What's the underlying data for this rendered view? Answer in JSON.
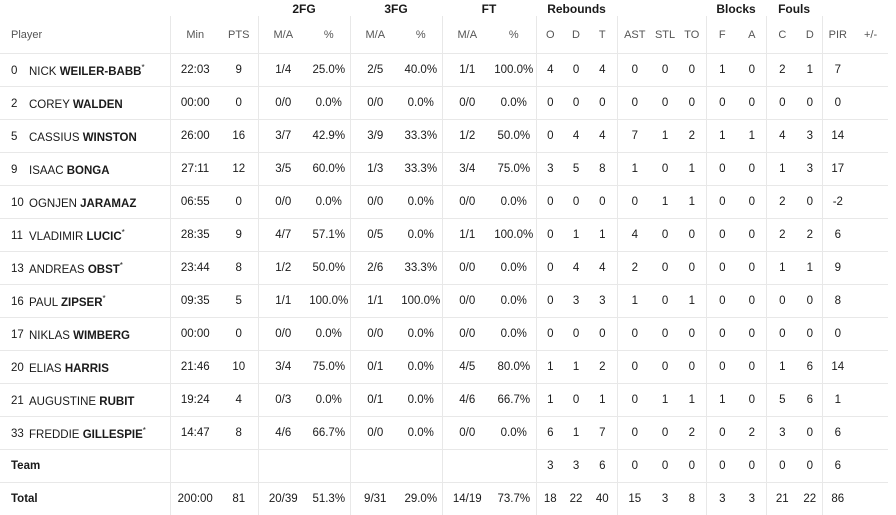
{
  "groups": {
    "fg2": "2FG",
    "fg3": "3FG",
    "ft": "FT",
    "rebounds": "Rebounds",
    "blocks": "Blocks",
    "fouls": "Fouls"
  },
  "columns": {
    "player": "Player",
    "min": "Min",
    "pts": "PTS",
    "fg2_ma": "M/A",
    "fg2_pct": "%",
    "fg3_ma": "M/A",
    "fg3_pct": "%",
    "ft_ma": "M/A",
    "ft_pct": "%",
    "reb_o": "O",
    "reb_d": "D",
    "reb_t": "T",
    "ast": "AST",
    "stl": "STL",
    "to": "TO",
    "blk_f": "F",
    "blk_a": "A",
    "foul_c": "C",
    "foul_d": "D",
    "pir": "PIR",
    "pm": "+/-"
  },
  "players": [
    {
      "num": "0",
      "first": "NICK",
      "last": "WEILER-BABB",
      "starter": "*",
      "min": "22:03",
      "pts": "9",
      "fg2_ma": "1/4",
      "fg2_pct": "25.0%",
      "fg3_ma": "2/5",
      "fg3_pct": "40.0%",
      "ft_ma": "1/1",
      "ft_pct": "100.0%",
      "reb_o": "4",
      "reb_d": "0",
      "reb_t": "4",
      "ast": "0",
      "stl": "0",
      "to": "0",
      "blk_f": "1",
      "blk_a": "0",
      "foul_c": "2",
      "foul_d": "1",
      "pir": "7",
      "pm": ""
    },
    {
      "num": "2",
      "first": "COREY",
      "last": "WALDEN",
      "starter": "",
      "min": "00:00",
      "pts": "0",
      "fg2_ma": "0/0",
      "fg2_pct": "0.0%",
      "fg3_ma": "0/0",
      "fg3_pct": "0.0%",
      "ft_ma": "0/0",
      "ft_pct": "0.0%",
      "reb_o": "0",
      "reb_d": "0",
      "reb_t": "0",
      "ast": "0",
      "stl": "0",
      "to": "0",
      "blk_f": "0",
      "blk_a": "0",
      "foul_c": "0",
      "foul_d": "0",
      "pir": "0",
      "pm": ""
    },
    {
      "num": "5",
      "first": "CASSIUS",
      "last": "WINSTON",
      "starter": "",
      "min": "26:00",
      "pts": "16",
      "fg2_ma": "3/7",
      "fg2_pct": "42.9%",
      "fg3_ma": "3/9",
      "fg3_pct": "33.3%",
      "ft_ma": "1/2",
      "ft_pct": "50.0%",
      "reb_o": "0",
      "reb_d": "4",
      "reb_t": "4",
      "ast": "7",
      "stl": "1",
      "to": "2",
      "blk_f": "1",
      "blk_a": "1",
      "foul_c": "4",
      "foul_d": "3",
      "pir": "14",
      "pm": ""
    },
    {
      "num": "9",
      "first": "ISAAC",
      "last": "BONGA",
      "starter": "",
      "min": "27:11",
      "pts": "12",
      "fg2_ma": "3/5",
      "fg2_pct": "60.0%",
      "fg3_ma": "1/3",
      "fg3_pct": "33.3%",
      "ft_ma": "3/4",
      "ft_pct": "75.0%",
      "reb_o": "3",
      "reb_d": "5",
      "reb_t": "8",
      "ast": "1",
      "stl": "0",
      "to": "1",
      "blk_f": "0",
      "blk_a": "0",
      "foul_c": "1",
      "foul_d": "3",
      "pir": "17",
      "pm": ""
    },
    {
      "num": "10",
      "first": "OGNJEN",
      "last": "JARAMAZ",
      "starter": "",
      "min": "06:55",
      "pts": "0",
      "fg2_ma": "0/0",
      "fg2_pct": "0.0%",
      "fg3_ma": "0/0",
      "fg3_pct": "0.0%",
      "ft_ma": "0/0",
      "ft_pct": "0.0%",
      "reb_o": "0",
      "reb_d": "0",
      "reb_t": "0",
      "ast": "0",
      "stl": "1",
      "to": "1",
      "blk_f": "0",
      "blk_a": "0",
      "foul_c": "2",
      "foul_d": "0",
      "pir": "-2",
      "pm": ""
    },
    {
      "num": "11",
      "first": "VLADIMIR",
      "last": "LUCIC",
      "starter": "*",
      "min": "28:35",
      "pts": "9",
      "fg2_ma": "4/7",
      "fg2_pct": "57.1%",
      "fg3_ma": "0/5",
      "fg3_pct": "0.0%",
      "ft_ma": "1/1",
      "ft_pct": "100.0%",
      "reb_o": "0",
      "reb_d": "1",
      "reb_t": "1",
      "ast": "4",
      "stl": "0",
      "to": "0",
      "blk_f": "0",
      "blk_a": "0",
      "foul_c": "2",
      "foul_d": "2",
      "pir": "6",
      "pm": ""
    },
    {
      "num": "13",
      "first": "ANDREAS",
      "last": "OBST",
      "starter": "*",
      "min": "23:44",
      "pts": "8",
      "fg2_ma": "1/2",
      "fg2_pct": "50.0%",
      "fg3_ma": "2/6",
      "fg3_pct": "33.3%",
      "ft_ma": "0/0",
      "ft_pct": "0.0%",
      "reb_o": "0",
      "reb_d": "4",
      "reb_t": "4",
      "ast": "2",
      "stl": "0",
      "to": "0",
      "blk_f": "0",
      "blk_a": "0",
      "foul_c": "1",
      "foul_d": "1",
      "pir": "9",
      "pm": ""
    },
    {
      "num": "16",
      "first": "PAUL",
      "last": "ZIPSER",
      "starter": "*",
      "min": "09:35",
      "pts": "5",
      "fg2_ma": "1/1",
      "fg2_pct": "100.0%",
      "fg3_ma": "1/1",
      "fg3_pct": "100.0%",
      "ft_ma": "0/0",
      "ft_pct": "0.0%",
      "reb_o": "0",
      "reb_d": "3",
      "reb_t": "3",
      "ast": "1",
      "stl": "0",
      "to": "1",
      "blk_f": "0",
      "blk_a": "0",
      "foul_c": "0",
      "foul_d": "0",
      "pir": "8",
      "pm": ""
    },
    {
      "num": "17",
      "first": "NIKLAS",
      "last": "WIMBERG",
      "starter": "",
      "min": "00:00",
      "pts": "0",
      "fg2_ma": "0/0",
      "fg2_pct": "0.0%",
      "fg3_ma": "0/0",
      "fg3_pct": "0.0%",
      "ft_ma": "0/0",
      "ft_pct": "0.0%",
      "reb_o": "0",
      "reb_d": "0",
      "reb_t": "0",
      "ast": "0",
      "stl": "0",
      "to": "0",
      "blk_f": "0",
      "blk_a": "0",
      "foul_c": "0",
      "foul_d": "0",
      "pir": "0",
      "pm": ""
    },
    {
      "num": "20",
      "first": "ELIAS",
      "last": "HARRIS",
      "starter": "",
      "min": "21:46",
      "pts": "10",
      "fg2_ma": "3/4",
      "fg2_pct": "75.0%",
      "fg3_ma": "0/1",
      "fg3_pct": "0.0%",
      "ft_ma": "4/5",
      "ft_pct": "80.0%",
      "reb_o": "1",
      "reb_d": "1",
      "reb_t": "2",
      "ast": "0",
      "stl": "0",
      "to": "0",
      "blk_f": "0",
      "blk_a": "0",
      "foul_c": "1",
      "foul_d": "6",
      "pir": "14",
      "pm": ""
    },
    {
      "num": "21",
      "first": "AUGUSTINE",
      "last": "RUBIT",
      "starter": "",
      "min": "19:24",
      "pts": "4",
      "fg2_ma": "0/3",
      "fg2_pct": "0.0%",
      "fg3_ma": "0/1",
      "fg3_pct": "0.0%",
      "ft_ma": "4/6",
      "ft_pct": "66.7%",
      "reb_o": "1",
      "reb_d": "0",
      "reb_t": "1",
      "ast": "0",
      "stl": "1",
      "to": "1",
      "blk_f": "1",
      "blk_a": "0",
      "foul_c": "5",
      "foul_d": "6",
      "pir": "1",
      "pm": ""
    },
    {
      "num": "33",
      "first": "FREDDIE",
      "last": "GILLESPIE",
      "starter": "*",
      "min": "14:47",
      "pts": "8",
      "fg2_ma": "4/6",
      "fg2_pct": "66.7%",
      "fg3_ma": "0/0",
      "fg3_pct": "0.0%",
      "ft_ma": "0/0",
      "ft_pct": "0.0%",
      "reb_o": "6",
      "reb_d": "1",
      "reb_t": "7",
      "ast": "0",
      "stl": "0",
      "to": "2",
      "blk_f": "0",
      "blk_a": "2",
      "foul_c": "3",
      "foul_d": "0",
      "pir": "6",
      "pm": ""
    }
  ],
  "team": {
    "label": "Team",
    "reb_o": "3",
    "reb_d": "3",
    "reb_t": "6",
    "ast": "0",
    "stl": "0",
    "to": "0",
    "blk_f": "0",
    "blk_a": "0",
    "foul_c": "0",
    "foul_d": "0",
    "pir": "6",
    "pm": ""
  },
  "total": {
    "label": "Total",
    "min": "200:00",
    "pts": "81",
    "fg2_ma": "20/39",
    "fg2_pct": "51.3%",
    "fg3_ma": "9/31",
    "fg3_pct": "29.0%",
    "ft_ma": "14/19",
    "ft_pct": "73.7%",
    "reb_o": "18",
    "reb_d": "22",
    "reb_t": "40",
    "ast": "15",
    "stl": "3",
    "to": "8",
    "blk_f": "3",
    "blk_a": "3",
    "foul_c": "21",
    "foul_d": "22",
    "pir": "86",
    "pm": ""
  }
}
